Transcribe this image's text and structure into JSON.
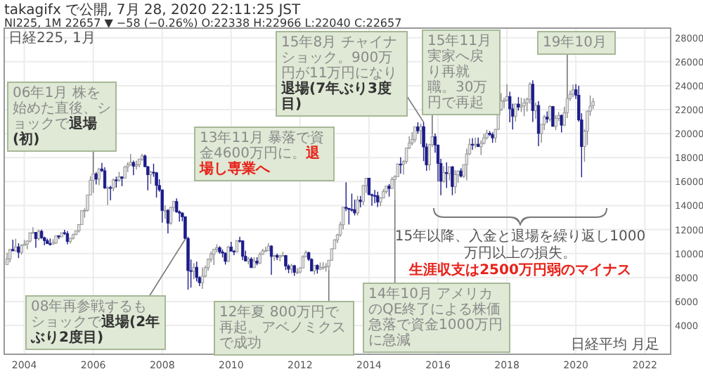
{
  "chart_data": {
    "type": "candlestick",
    "title": "takagifx で公開, 7月 28, 2020 22:11:25 JST",
    "subtitle": "NI225, 1M 22657 ▼ −58 (−0.26%) O:22338 H:22966 L:22040 C:22657",
    "annotations": [
      {
        "text": "06年1月 株を始めた直後、ショックで",
        "x": "2006-01",
        "y": 16700
      },
      "退場(初)",
      "13年11月 暴落で資金4600万円に。",
      "退場し専業へ",
      {
        "text": "15年8月 チャイナショック。900万円が11万円になり",
        "x": "2015-08",
        "y": 20950
      },
      "退場(7年ぶり3度目)",
      {
        "text": "15年11月実家へ戻り再就職。30万円で再起",
        "x": "2015-11",
        "y": 19940
      },
      {
        "text": "19年10月",
        "x": "2019-10",
        "y": 22970
      },
      "15年以降、入金と退場を繰り返し1000万円以上の損失。",
      "生涯収支は2500万円弱のマイナス",
      {
        "text": "08年再参戦するもショックで",
        "x": "2008-09",
        "y": 11200
      },
      "退場(2年ぶり2度目)",
      {
        "text": "12年夏 800万円で再起。アベノミクスで成功",
        "x": "2012-11",
        "y": 8660
      },
      {
        "text": "14年10月 アメリカのQE終了による株価急落で資金1000万円に急減",
        "x": "2014-10",
        "y": 14530
      },
      "日経平均 月足",
      "日経225, 1月"
    ],
    "x": [
      "2003-07",
      "2003-08",
      "2003-09",
      "2003-10",
      "2003-11",
      "2003-12",
      "2004-01",
      "2004-02",
      "2004-03",
      "2004-04",
      "2004-05",
      "2004-06",
      "2004-07",
      "2004-08",
      "2004-09",
      "2004-10",
      "2004-11",
      "2004-12",
      "2005-01",
      "2005-02",
      "2005-03",
      "2005-04",
      "2005-05",
      "2005-06",
      "2005-07",
      "2005-08",
      "2005-09",
      "2005-10",
      "2005-11",
      "2005-12",
      "2006-01",
      "2006-02",
      "2006-03",
      "2006-04",
      "2006-05",
      "2006-06",
      "2006-07",
      "2006-08",
      "2006-09",
      "2006-10",
      "2006-11",
      "2006-12",
      "2007-01",
      "2007-02",
      "2007-03",
      "2007-04",
      "2007-05",
      "2007-06",
      "2007-07",
      "2007-08",
      "2007-09",
      "2007-10",
      "2007-11",
      "2007-12",
      "2008-01",
      "2008-02",
      "2008-03",
      "2008-04",
      "2008-05",
      "2008-06",
      "2008-07",
      "2008-08",
      "2008-09",
      "2008-10",
      "2008-11",
      "2008-12",
      "2009-01",
      "2009-02",
      "2009-03",
      "2009-04",
      "2009-05",
      "2009-06",
      "2009-07",
      "2009-08",
      "2009-09",
      "2009-10",
      "2009-11",
      "2009-12",
      "2010-01",
      "2010-02",
      "2010-03",
      "2010-04",
      "2010-05",
      "2010-06",
      "2010-07",
      "2010-08",
      "2010-09",
      "2010-10",
      "2010-11",
      "2010-12",
      "2011-01",
      "2011-02",
      "2011-03",
      "2011-04",
      "2011-05",
      "2011-06",
      "2011-07",
      "2011-08",
      "2011-09",
      "2011-10",
      "2011-11",
      "2011-12",
      "2012-01",
      "2012-02",
      "2012-03",
      "2012-04",
      "2012-05",
      "2012-06",
      "2012-07",
      "2012-08",
      "2012-09",
      "2012-10",
      "2012-11",
      "2012-12",
      "2013-01",
      "2013-02",
      "2013-03",
      "2013-04",
      "2013-05",
      "2013-06",
      "2013-07",
      "2013-08",
      "2013-09",
      "2013-10",
      "2013-11",
      "2013-12",
      "2014-01",
      "2014-02",
      "2014-03",
      "2014-04",
      "2014-05",
      "2014-06",
      "2014-07",
      "2014-08",
      "2014-09",
      "2014-10",
      "2014-11",
      "2014-12",
      "2015-01",
      "2015-02",
      "2015-03",
      "2015-04",
      "2015-05",
      "2015-06",
      "2015-07",
      "2015-08",
      "2015-09",
      "2015-10",
      "2015-11",
      "2015-12",
      "2016-01",
      "2016-02",
      "2016-03",
      "2016-04",
      "2016-05",
      "2016-06",
      "2016-07",
      "2016-08",
      "2016-09",
      "2016-10",
      "2016-11",
      "2016-12",
      "2017-01",
      "2017-02",
      "2017-03",
      "2017-04",
      "2017-05",
      "2017-06",
      "2017-07",
      "2017-08",
      "2017-09",
      "2017-10",
      "2017-11",
      "2017-12",
      "2018-01",
      "2018-02",
      "2018-03",
      "2018-04",
      "2018-05",
      "2018-06",
      "2018-07",
      "2018-08",
      "2018-09",
      "2018-10",
      "2018-11",
      "2018-12",
      "2019-01",
      "2019-02",
      "2019-03",
      "2019-04",
      "2019-05",
      "2019-06",
      "2019-07",
      "2019-08",
      "2019-09",
      "2019-10",
      "2019-11",
      "2019-12",
      "2020-01",
      "2020-02",
      "2020-03",
      "2020-04",
      "2020-05",
      "2020-06",
      "2020-07"
    ],
    "ohlc": [
      [
        9083,
        10070,
        9080,
        9563
      ],
      [
        9563,
        10390,
        9260,
        10343
      ],
      [
        10343,
        11160,
        10210,
        10219
      ],
      [
        10219,
        11240,
        10160,
        10560
      ],
      [
        10560,
        10860,
        9620,
        10100
      ],
      [
        10100,
        10780,
        9910,
        10677
      ],
      [
        10677,
        11140,
        10630,
        10783
      ],
      [
        10783,
        11100,
        10360,
        11041
      ],
      [
        11041,
        11770,
        10920,
        11715
      ],
      [
        11715,
        12200,
        11640,
        11762
      ],
      [
        11762,
        11800,
        10480,
        11236
      ],
      [
        11236,
        11990,
        11090,
        11858
      ],
      [
        11858,
        11990,
        11200,
        11325
      ],
      [
        11325,
        11400,
        10690,
        11081
      ],
      [
        11081,
        11250,
        10800,
        10823
      ],
      [
        10823,
        11250,
        10660,
        10771
      ],
      [
        10771,
        11200,
        10760,
        10899
      ],
      [
        10899,
        11500,
        10800,
        11488
      ],
      [
        11488,
        11520,
        11200,
        11387
      ],
      [
        11387,
        11740,
        11370,
        11740
      ],
      [
        11740,
        11980,
        11550,
        11668
      ],
      [
        11668,
        11870,
        10770,
        11008
      ],
      [
        11008,
        11310,
        10830,
        11276
      ],
      [
        11276,
        11650,
        11170,
        11584
      ],
      [
        11584,
        11900,
        11540,
        11899
      ],
      [
        11899,
        12450,
        11750,
        12413
      ],
      [
        12413,
        13620,
        12390,
        13574
      ],
      [
        13574,
        13770,
        13000,
        13606
      ],
      [
        13606,
        14900,
        13500,
        14872
      ],
      [
        14872,
        16450,
        14850,
        16111
      ],
      [
        16111,
        16700,
        15060,
        16649
      ],
      [
        16649,
        16800,
        15760,
        16205
      ],
      [
        16205,
        17120,
        15700,
        17059
      ],
      [
        17059,
        17560,
        16800,
        16906
      ],
      [
        16906,
        17190,
        15390,
        15467
      ],
      [
        15467,
        15600,
        14040,
        15505
      ],
      [
        15505,
        15650,
        14440,
        15456
      ],
      [
        15456,
        16250,
        15200,
        16140
      ],
      [
        16140,
        16410,
        15500,
        16127
      ],
      [
        16127,
        16810,
        16000,
        16399
      ],
      [
        16399,
        16430,
        15620,
        16274
      ],
      [
        16274,
        17300,
        16270,
        17225
      ],
      [
        17225,
        17620,
        16800,
        17383
      ],
      [
        17383,
        18300,
        17320,
        17604
      ],
      [
        17604,
        17750,
        16530,
        17287
      ],
      [
        17287,
        17750,
        17000,
        17400
      ],
      [
        17400,
        17900,
        17200,
        17875
      ],
      [
        17875,
        18300,
        17700,
        18138
      ],
      [
        18138,
        18260,
        17200,
        17248
      ],
      [
        17248,
        17300,
        15270,
        16569
      ],
      [
        16569,
        16900,
        15800,
        16785
      ],
      [
        16785,
        17490,
        16400,
        16737
      ],
      [
        16737,
        16800,
        14670,
        15680
      ],
      [
        15680,
        16200,
        15150,
        15307
      ],
      [
        15307,
        15350,
        12570,
        13592
      ],
      [
        13592,
        14030,
        12900,
        13603
      ],
      [
        13603,
        13700,
        11690,
        12525
      ],
      [
        12525,
        13900,
        12400,
        13849
      ],
      [
        13849,
        14400,
        13500,
        14338
      ],
      [
        14338,
        14600,
        13400,
        13481
      ],
      [
        13481,
        13600,
        12670,
        13376
      ],
      [
        13376,
        13450,
        12690,
        13072
      ],
      [
        13072,
        13100,
        11200,
        11259
      ],
      [
        11259,
        11400,
        6990,
        8576
      ],
      [
        8576,
        9500,
        7160,
        8512
      ],
      [
        8512,
        9200,
        7860,
        8859
      ],
      [
        8859,
        9330,
        7670,
        7994
      ],
      [
        7994,
        8100,
        7280,
        7568
      ],
      [
        7568,
        8840,
        7050,
        8109
      ],
      [
        8109,
        9000,
        8000,
        8828
      ],
      [
        8828,
        9580,
        8560,
        9522
      ],
      [
        9522,
        10170,
        9300,
        9958
      ],
      [
        9958,
        10400,
        9050,
        10356
      ],
      [
        10356,
        10770,
        10100,
        10492
      ],
      [
        10492,
        10620,
        9980,
        10133
      ],
      [
        10133,
        10340,
        9670,
        10034
      ],
      [
        10034,
        10100,
        9080,
        9345
      ],
      [
        9345,
        10640,
        9300,
        10546
      ],
      [
        10546,
        10980,
        10190,
        10198
      ],
      [
        10198,
        10300,
        9870,
        10126
      ],
      [
        10126,
        11100,
        10100,
        11089
      ],
      [
        11089,
        11400,
        10900,
        11057
      ],
      [
        11057,
        11100,
        9460,
        9768
      ],
      [
        9768,
        10240,
        9370,
        9382
      ],
      [
        9382,
        9700,
        9090,
        9537
      ],
      [
        9537,
        9700,
        8800,
        8824
      ],
      [
        8824,
        9700,
        8800,
        9369
      ],
      [
        9369,
        9690,
        9030,
        9202
      ],
      [
        9202,
        10100,
        9120,
        9937
      ],
      [
        9937,
        10400,
        9900,
        10228
      ],
      [
        10228,
        10550,
        10150,
        10237
      ],
      [
        10237,
        10860,
        10230,
        10624
      ],
      [
        10624,
        10700,
        8230,
        9755
      ],
      [
        9755,
        9900,
        9400,
        9849
      ],
      [
        9849,
        10000,
        9460,
        9693
      ],
      [
        9693,
        9900,
        9350,
        9816
      ],
      [
        9816,
        10140,
        9800,
        9833
      ],
      [
        9833,
        9880,
        8620,
        8955
      ],
      [
        8955,
        9100,
        8360,
        8700
      ],
      [
        8700,
        9150,
        8340,
        8988
      ],
      [
        8988,
        9060,
        8140,
        8434
      ],
      [
        8434,
        8780,
        8290,
        8455
      ],
      [
        8455,
        8860,
        8350,
        8802
      ],
      [
        8802,
        9870,
        8800,
        9723
      ],
      [
        9723,
        10260,
        9700,
        10083
      ],
      [
        10083,
        10150,
        9380,
        9520
      ],
      [
        9520,
        9600,
        8520,
        8542
      ],
      [
        8542,
        9050,
        8240,
        9006
      ],
      [
        9006,
        9100,
        8330,
        8695
      ],
      [
        8695,
        9250,
        8620,
        8839
      ],
      [
        8839,
        9290,
        8660,
        8870
      ],
      [
        8870,
        9200,
        8490,
        8928
      ],
      [
        8928,
        9460,
        8660,
        9446
      ],
      [
        9446,
        10430,
        9400,
        10395
      ],
      [
        10395,
        11200,
        10390,
        11138
      ],
      [
        11138,
        11660,
        10860,
        11559
      ],
      [
        11559,
        12650,
        11400,
        12397
      ],
      [
        12397,
        13900,
        12000,
        13860
      ],
      [
        13860,
        15950,
        13550,
        13774
      ],
      [
        13774,
        13800,
        12420,
        13677
      ],
      [
        13677,
        15000,
        13500,
        13668
      ],
      [
        13668,
        14500,
        13180,
        13388
      ],
      [
        13388,
        14820,
        13180,
        14455
      ],
      [
        14455,
        14800,
        13850,
        14327
      ],
      [
        14327,
        15730,
        14040,
        15662
      ],
      [
        15662,
        16320,
        15050,
        16291
      ],
      [
        16291,
        16320,
        14860,
        14914
      ],
      [
        14914,
        15000,
        13990,
        14841
      ],
      [
        14841,
        15300,
        14200,
        14828
      ],
      [
        14828,
        15160,
        13880,
        14304
      ],
      [
        14304,
        14700,
        13960,
        14632
      ],
      [
        14632,
        15380,
        14600,
        15162
      ],
      [
        15162,
        15650,
        15000,
        15621
      ],
      [
        15621,
        15800,
        14750,
        15425
      ],
      [
        15425,
        16380,
        15420,
        16174
      ],
      [
        16174,
        16530,
        14530,
        16414
      ],
      [
        16414,
        17520,
        16400,
        17460
      ],
      [
        17460,
        18030,
        16670,
        17451
      ],
      [
        17451,
        17800,
        16590,
        17674
      ],
      [
        17674,
        18830,
        17500,
        18798
      ],
      [
        18798,
        19780,
        18700,
        19207
      ],
      [
        19207,
        20130,
        19030,
        19520
      ],
      [
        19520,
        20570,
        19280,
        20563
      ],
      [
        20563,
        20950,
        19990,
        20236
      ],
      [
        20236,
        20850,
        19120,
        20585
      ],
      [
        20585,
        20950,
        17710,
        18890
      ],
      [
        18890,
        19200,
        16900,
        17388
      ],
      [
        17388,
        19150,
        16930,
        19083
      ],
      [
        19083,
        19940,
        18900,
        19747
      ],
      [
        19747,
        20010,
        18410,
        19034
      ],
      [
        19034,
        19100,
        16010,
        17518
      ],
      [
        17518,
        17900,
        14870,
        16027
      ],
      [
        16027,
        17290,
        15900,
        16759
      ],
      [
        16759,
        17610,
        15470,
        16666
      ],
      [
        16666,
        17250,
        16100,
        17235
      ],
      [
        17235,
        17300,
        14860,
        15576
      ],
      [
        15576,
        16950,
        15000,
        16569
      ],
      [
        16569,
        16940,
        15900,
        16887
      ],
      [
        16887,
        17100,
        16350,
        16450
      ],
      [
        16450,
        17430,
        16300,
        17425
      ],
      [
        17425,
        18750,
        16110,
        18308
      ],
      [
        18308,
        19590,
        18200,
        19114
      ],
      [
        19114,
        19620,
        18650,
        19041
      ],
      [
        19041,
        19670,
        18800,
        19119
      ],
      [
        19119,
        19670,
        18900,
        18909
      ],
      [
        18909,
        19450,
        18220,
        19197
      ],
      [
        19197,
        19990,
        19100,
        19651
      ],
      [
        19651,
        20320,
        19500,
        20033
      ],
      [
        20033,
        20220,
        19800,
        19925
      ],
      [
        19925,
        20100,
        19240,
        19646
      ],
      [
        19646,
        20400,
        19240,
        20356
      ],
      [
        20356,
        22050,
        20300,
        22012
      ],
      [
        22012,
        23380,
        21900,
        22725
      ],
      [
        22725,
        23000,
        22100,
        22765
      ],
      [
        22765,
        24130,
        22700,
        23098
      ],
      [
        23098,
        23500,
        20950,
        22068
      ],
      [
        22068,
        22500,
        20350,
        21454
      ],
      [
        21454,
        22500,
        21000,
        22468
      ],
      [
        22468,
        23050,
        21930,
        22202
      ],
      [
        22202,
        23000,
        21800,
        22305
      ],
      [
        22305,
        22950,
        21460,
        22554
      ],
      [
        22554,
        23000,
        21850,
        22865
      ],
      [
        22865,
        24290,
        22500,
        24120
      ],
      [
        24120,
        24450,
        20970,
        21920
      ],
      [
        21920,
        22600,
        21240,
        22351
      ],
      [
        22351,
        22700,
        18950,
        20015
      ],
      [
        20015,
        20800,
        19240,
        20773
      ],
      [
        20773,
        21560,
        20300,
        21385
      ],
      [
        21385,
        21860,
        20900,
        21206
      ],
      [
        21206,
        22360,
        21000,
        22259
      ],
      [
        22259,
        22310,
        20600,
        20601
      ],
      [
        20601,
        21550,
        20290,
        21276
      ],
      [
        21276,
        21800,
        21050,
        21522
      ],
      [
        21522,
        21600,
        20100,
        20704
      ],
      [
        20704,
        22250,
        20620,
        21756
      ],
      [
        21756,
        22970,
        21300,
        22927
      ],
      [
        22927,
        23600,
        22730,
        23294
      ],
      [
        23294,
        24090,
        23040,
        23657
      ],
      [
        23657,
        24120,
        22890,
        23205
      ],
      [
        23205,
        24000,
        21000,
        21143
      ],
      [
        21143,
        21700,
        16360,
        18917
      ],
      [
        18917,
        20370,
        17650,
        20194
      ],
      [
        20194,
        21920,
        19050,
        21878
      ],
      [
        21878,
        23180,
        21500,
        22288
      ],
      [
        22338,
        22966,
        22040,
        22657
      ]
    ],
    "xlim": [
      "2003-06",
      "2022-10"
    ],
    "ylim": [
      1600,
      28800
    ],
    "xticks": [
      "2004",
      "2006",
      "2008",
      "2010",
      "2012",
      "2014",
      "2016",
      "2018",
      "2020",
      "2022"
    ],
    "yticks": [
      4000,
      6000,
      8000,
      10000,
      12000,
      14000,
      16000,
      18000,
      20000,
      22000,
      24000,
      26000,
      28000
    ],
    "grid": true
  }
}
